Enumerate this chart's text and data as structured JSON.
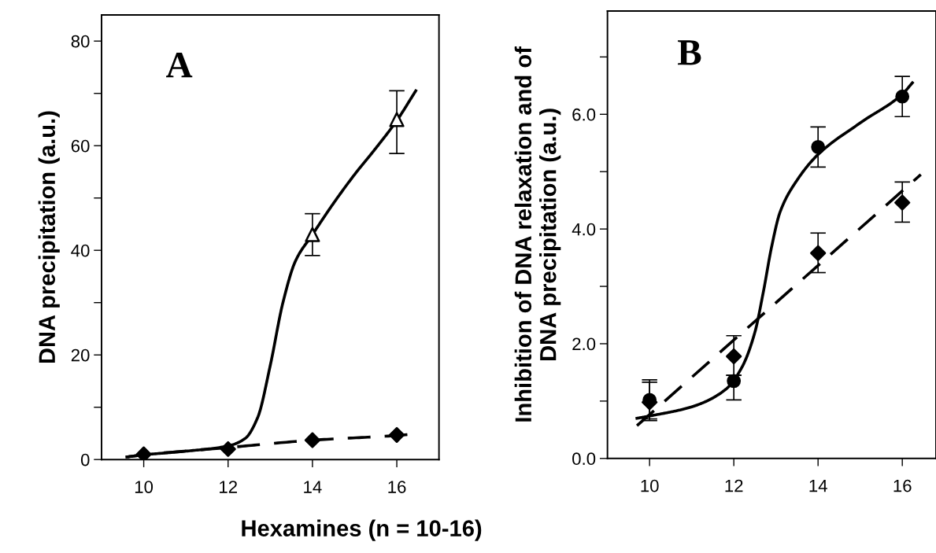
{
  "chart_data": [
    {
      "type": "scatter",
      "title": "A",
      "xlabel": "Hexamines (n = 10-16)",
      "ylabel": "DNA precipitation (a.u.)",
      "xlim": [
        9,
        17
      ],
      "xticks": [
        10,
        12,
        14,
        16
      ],
      "ylim": [
        0,
        85
      ],
      "yticks": [
        0,
        {
          "value": 10,
          "label": null
        },
        20,
        {
          "value": 30,
          "label": null
        },
        40,
        {
          "value": 50,
          "label": null
        },
        60,
        {
          "value": 70,
          "label": null
        },
        80
      ],
      "grid": false,
      "legend": false,
      "series": [
        {
          "type": "line",
          "color": "#000000",
          "line_style": "solid",
          "marker": "none",
          "x": [
            9.6,
            10,
            11,
            12,
            12.4,
            12.7,
            13,
            13.3,
            13.6,
            14,
            14.5,
            15,
            15.5,
            16,
            16.45
          ],
          "values": [
            0.5,
            0.9,
            1.6,
            2.6,
            4,
            8,
            18,
            30,
            38,
            43,
            49,
            54.5,
            59.5,
            64.8,
            70.5
          ]
        },
        {
          "type": "line",
          "color": "#000000",
          "line_style": "dashed",
          "marker": "none",
          "x": [
            9.6,
            10,
            12,
            14,
            16,
            16.3
          ],
          "values": [
            0.5,
            0.9,
            2.3,
            3.7,
            4.6,
            4.8
          ]
        },
        {
          "color": "#000000",
          "marker": "triangle",
          "x": [
            14,
            16
          ],
          "values": [
            43,
            65
          ],
          "errors": [
            [
              39,
              47
            ],
            [
              58.5,
              70.5
            ]
          ]
        },
        {
          "color": "#000000",
          "marker": "diamond",
          "x": [
            10,
            12,
            14,
            16
          ],
          "values": [
            1,
            2,
            3.7,
            4.7
          ]
        }
      ]
    },
    {
      "type": "scatter",
      "title": "B",
      "ylabel": "Inhibition of DNA relaxation and of\nDNA precipitation (a.u.)",
      "xlim": [
        9,
        16.8
      ],
      "xticks": [
        10,
        12,
        14,
        16
      ],
      "ylim": [
        0,
        7.8
      ],
      "yticks": [
        {
          "value": 0,
          "label": "0.0"
        },
        {
          "value": 1,
          "label": null
        },
        {
          "value": 2,
          "label": "2.0"
        },
        {
          "value": 3,
          "label": null
        },
        {
          "value": 4,
          "label": "4.0"
        },
        {
          "value": 5,
          "label": null
        },
        {
          "value": 6,
          "label": "6.0"
        },
        {
          "value": 7,
          "label": null
        }
      ],
      "grid": false,
      "legend": false,
      "series": [
        {
          "type": "line",
          "color": "#000000",
          "line_style": "solid",
          "marker": "none",
          "x": [
            9.7,
            10,
            11,
            11.8,
            12.2,
            12.5,
            12.7,
            12.9,
            13.1,
            13.5,
            14,
            15,
            16,
            16.24
          ],
          "values": [
            0.7,
            0.74,
            0.9,
            1.2,
            1.6,
            2.2,
            2.9,
            3.7,
            4.3,
            4.85,
            5.3,
            5.85,
            6.35,
            6.55
          ]
        },
        {
          "type": "line",
          "color": "#000000",
          "line_style": "dashed",
          "marker": "none",
          "x": [
            9.7,
            16.44
          ],
          "values": [
            0.57,
            4.95
          ]
        },
        {
          "color": "#000000",
          "marker": "circle",
          "x": [
            10,
            12,
            14,
            16
          ],
          "values": [
            1.02,
            1.35,
            5.43,
            6.31
          ],
          "errors": [
            [
              0.66,
              1.37
            ],
            [
              1.02,
              1.45
            ],
            [
              5.08,
              5.78
            ],
            [
              5.96,
              6.66
            ]
          ]
        },
        {
          "color": "#000000",
          "marker": "diamond",
          "x": [
            10,
            12,
            14,
            16
          ],
          "values": [
            0.98,
            1.78,
            3.58,
            4.46
          ],
          "errors": [
            [
              0.69,
              1.33
            ],
            [
              1.45,
              2.14
            ],
            [
              3.24,
              3.93
            ],
            [
              4.12,
              4.82
            ]
          ]
        }
      ]
    }
  ]
}
